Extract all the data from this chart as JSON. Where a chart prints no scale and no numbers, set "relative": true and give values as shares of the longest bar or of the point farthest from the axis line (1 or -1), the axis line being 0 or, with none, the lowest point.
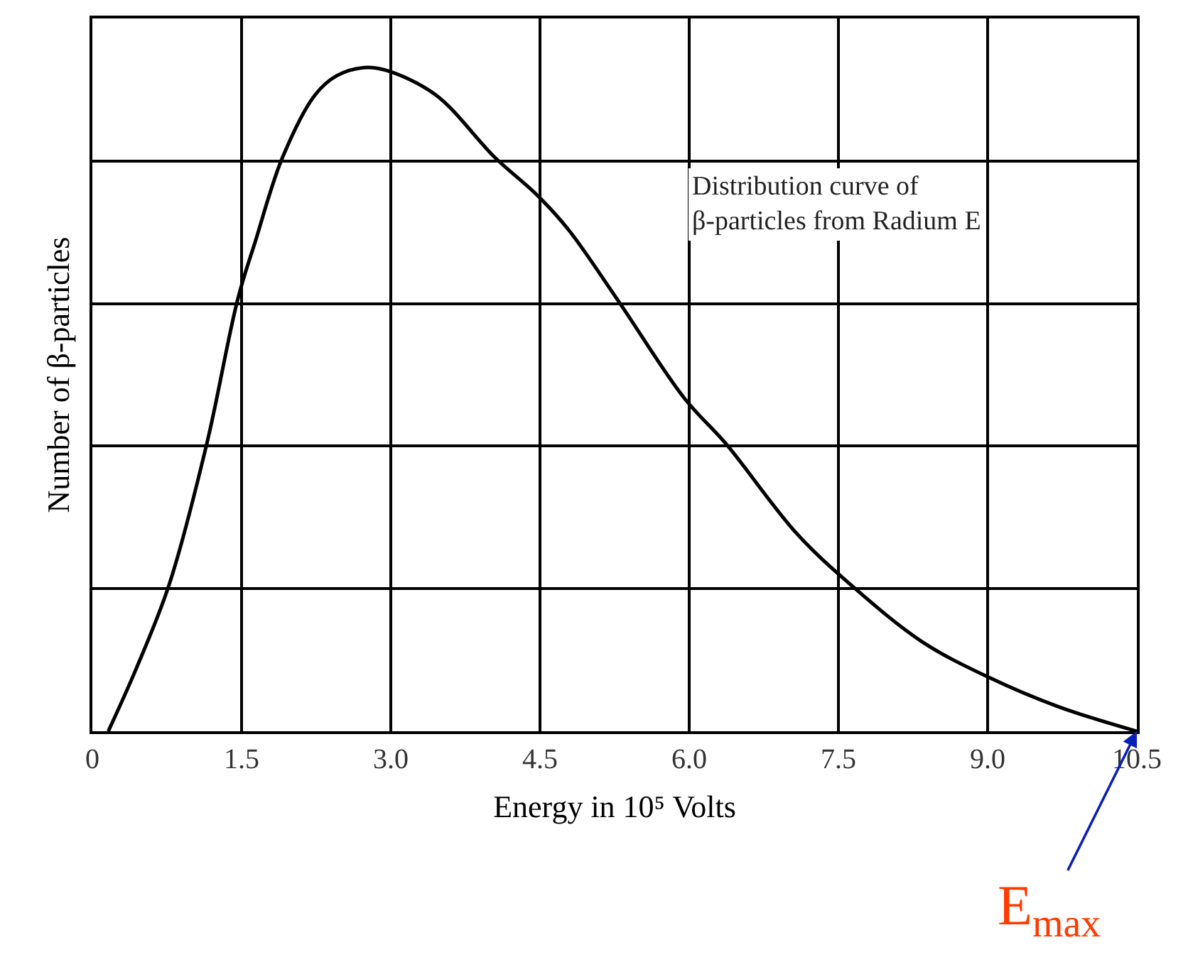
{
  "chart_data": {
    "type": "line",
    "relative": true,
    "xlabel": "Energy in 10⁵ Volts",
    "ylabel": "Number of β-particles",
    "xlim": [
      0,
      10.5
    ],
    "xticks": [
      0,
      {
        "value": 1.5,
        "label": "1.5"
      },
      {
        "value": 3,
        "label": "3.0"
      },
      {
        "value": 4.5,
        "label": "4.5"
      },
      {
        "value": 6,
        "label": "6.0"
      },
      {
        "value": 7.5,
        "label": "7.5"
      },
      {
        "value": 9,
        "label": "9.0"
      },
      {
        "value": 10.5,
        "label": "10.5"
      }
    ],
    "tick_labels": "x",
    "grid": true,
    "marker": "none",
    "line_style": "solid",
    "series": [
      {
        "color": "#000000",
        "x": [
          0.16,
          0.44,
          0.77,
          1.15,
          1.46,
          1.64,
          1.91,
          2.24,
          2.46,
          2.73,
          2.95,
          3.45,
          4.05,
          4.47,
          4.79,
          5.28,
          5.95,
          6.37,
          7.08,
          7.63,
          8.34,
          9.0,
          9.71,
          10.5
        ],
        "values": [
          0,
          0.094,
          0.22,
          0.433,
          0.65,
          0.739,
          0.864,
          0.959,
          0.988,
          1.0,
          0.996,
          0.959,
          0.864,
          0.808,
          0.755,
          0.65,
          0.502,
          0.433,
          0.298,
          0.22,
          0.135,
          0.082,
          0.037,
          0
        ]
      }
    ],
    "annotations": [
      "Distribution curve of\nβ-particles from Radium E",
      {
        "text": "E$_{max}$",
        "x": 10.5,
        "y": 0
      }
    ]
  }
}
